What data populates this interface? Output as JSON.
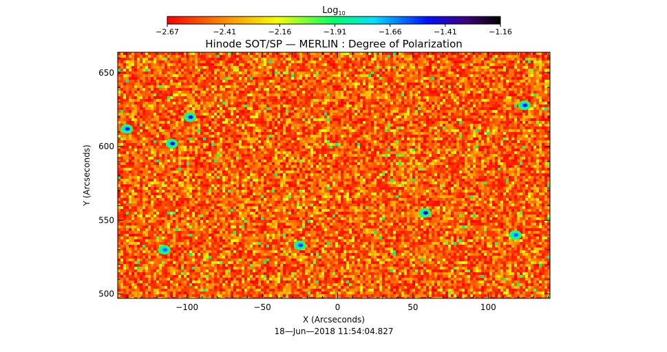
{
  "chart_data": {
    "type": "heatmap",
    "title": "Hinode SOT/SP — MERLIN : Degree of Polarization",
    "xlabel": "X (Arcseconds)",
    "ylabel": "Y (Arcseconds)",
    "xlim": [
      -146,
      141
    ],
    "ylim": [
      497,
      664
    ],
    "x_ticks": [
      -100,
      -50,
      0,
      50,
      100
    ],
    "x_tick_labels": [
      "−100",
      "−50",
      "0",
      "50",
      "100"
    ],
    "y_ticks": [
      500,
      550,
      600,
      650
    ],
    "y_tick_labels": [
      "500",
      "550",
      "600",
      "650"
    ],
    "colorbar": {
      "label_base": "Log",
      "label_sub": "10",
      "min": -2.67,
      "max": -1.16,
      "tick_values": [
        -2.67,
        -2.41,
        -2.16,
        -1.91,
        -1.66,
        -1.41,
        -1.16
      ],
      "tick_labels": [
        "−2.67",
        "−2.41",
        "−2.16",
        "−1.91",
        "−1.66",
        "−1.41",
        "−1.16"
      ],
      "colormap": "rainbow-reversed (red → yellow → green → cyan → blue → black)"
    },
    "features": [
      {
        "kind": "strong-polarization patch",
        "x": 58,
        "y": 555,
        "value": -1.35
      },
      {
        "kind": "strong-polarization patch",
        "x": 124,
        "y": 628,
        "value": -1.5
      },
      {
        "kind": "strong-polarization patch",
        "x": -110,
        "y": 602,
        "value": -1.45
      },
      {
        "kind": "strong-polarization patch",
        "x": -98,
        "y": 620,
        "value": -1.45
      },
      {
        "kind": "strong-polarization patch",
        "x": -140,
        "y": 612,
        "value": -1.5
      },
      {
        "kind": "strong-polarization patch",
        "x": -115,
        "y": 530,
        "value": -1.6
      },
      {
        "kind": "strong-polarization patch",
        "x": -25,
        "y": 533,
        "value": -1.55
      },
      {
        "kind": "strong-polarization patch",
        "x": 118,
        "y": 540,
        "value": -1.6
      }
    ]
  },
  "footer": {
    "timestamp": "18—Jun—2018 11:54:04.827"
  },
  "colors": {
    "background": "#ffffff",
    "map_base": "#ff3a10",
    "axis": "#000000"
  }
}
